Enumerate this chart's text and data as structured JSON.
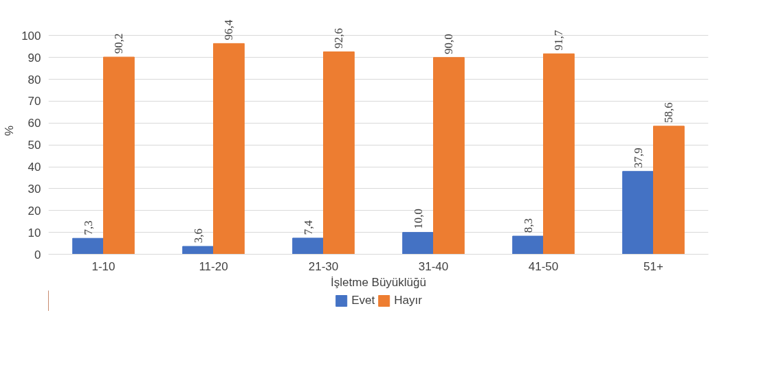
{
  "chart_data": {
    "type": "bar",
    "xlabel": "İşletme Büyüklüğü",
    "ylabel": "%",
    "categories": [
      "1-10",
      "11-20",
      "21-30",
      "31-40",
      "41-50",
      "51+"
    ],
    "series": [
      {
        "name": "Evet",
        "color": "#4472c4",
        "values": [
          7.3,
          3.6,
          7.4,
          10.0,
          8.3,
          37.9
        ],
        "value_labels": [
          "7,3",
          "3,6",
          "7,4",
          "10,0",
          "8,3",
          "37,9"
        ]
      },
      {
        "name": "Hayır",
        "color": "#ed7d31",
        "values": [
          90.2,
          96.4,
          92.6,
          90.0,
          91.7,
          58.6
        ],
        "value_labels": [
          "90,2",
          "96,4",
          "92,6",
          "90,0",
          "91,7",
          "58,6"
        ]
      }
    ],
    "ylim": [
      0,
      100
    ],
    "yticks": [
      0,
      10,
      20,
      30,
      40,
      50,
      60,
      70,
      80,
      90,
      100
    ],
    "grid": "y",
    "legend": "bottom"
  }
}
